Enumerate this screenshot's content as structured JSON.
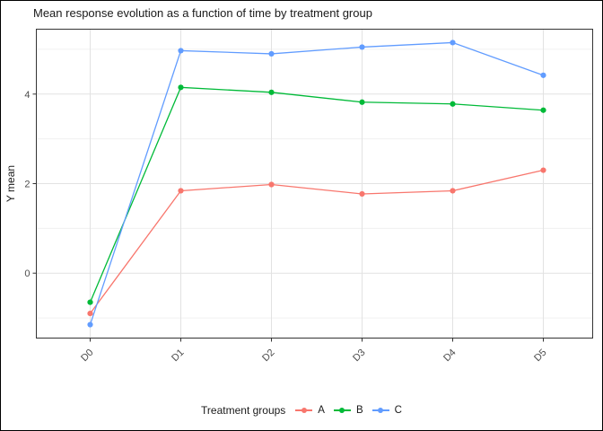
{
  "figure": {
    "title": "Mean response evolution as a function of time by treatment group"
  },
  "chart_data": {
    "type": "line",
    "title": "Mean response evolution as a function of time by treatment group",
    "xlabel": "",
    "ylabel": "Y mean",
    "categories": [
      "D0",
      "D1",
      "D2",
      "D3",
      "D4",
      "D5"
    ],
    "series": [
      {
        "name": "A",
        "color": "#F8766D",
        "values": [
          -0.9,
          1.84,
          1.98,
          1.77,
          1.84,
          2.3
        ]
      },
      {
        "name": "B",
        "color": "#00BA38",
        "values": [
          -0.65,
          4.15,
          4.04,
          3.82,
          3.78,
          3.64
        ]
      },
      {
        "name": "C",
        "color": "#619CFF",
        "values": [
          -1.15,
          4.97,
          4.9,
          5.05,
          5.15,
          4.42
        ]
      }
    ],
    "ylim": [
      -1.45,
      5.45
    ],
    "yticks": [
      0,
      2,
      4
    ],
    "minor_yticks": [
      -1,
      1,
      3,
      5
    ],
    "grid": true,
    "marker": "circle",
    "legend_position": "bottom",
    "legend_title": "Treatment groups"
  },
  "legend": {
    "title": "Treatment groups"
  },
  "colors": {
    "background": "#FFFFFF",
    "grid_major": "#E2E2E2",
    "grid_minor": "#F0F0F0",
    "panel_border": "#333333",
    "tick_mark": "#333333",
    "tick_label": "#4D4D4D",
    "axis_title": "#1A1A1A",
    "plot_title": "#1A1A1A"
  }
}
